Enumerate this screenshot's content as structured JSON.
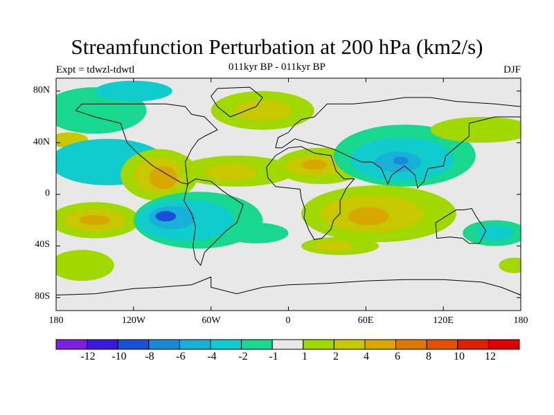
{
  "title": "Streamfunction Perturbation at 200 hPa (km2/s)",
  "subtitle": "011kyr BP - 011kyr BP",
  "left_label": "Expt = tdwzl-tdwtl",
  "right_label": "DJF",
  "lat_ticks": [
    "80N",
    "40N",
    "0",
    "40S",
    "80S"
  ],
  "lon_ticks": [
    "180",
    "120W",
    "60W",
    "0",
    "60E",
    "120E",
    "180"
  ],
  "colorbar": {
    "colors": [
      "#7f1fdf",
      "#3a1adf",
      "#1a50d8",
      "#1a88d8",
      "#18b0d8",
      "#10cccc",
      "#18d890",
      "#e8e8e8",
      "#a0d800",
      "#c8c800",
      "#d8a800",
      "#e07800",
      "#e05000",
      "#e02000",
      "#e00000"
    ],
    "labels": [
      "-12",
      "-10",
      "-8",
      "-6",
      "-4",
      "-2",
      "-1",
      "1",
      "2",
      "4",
      "6",
      "8",
      "10",
      "12"
    ]
  },
  "map": {
    "background_color": "#e8e8e8",
    "lon_range": [
      -180,
      180
    ],
    "lat_range": [
      -90,
      90
    ],
    "features": [
      {
        "name": "n-pacific-green-band",
        "lon": -150,
        "lat": 65,
        "rx": 40,
        "ry": 18,
        "color": "#18d890"
      },
      {
        "name": "arctic-cyan",
        "lon": -120,
        "lat": 80,
        "rx": 30,
        "ry": 8,
        "color": "#10cccc"
      },
      {
        "name": "n-atlantic-green",
        "lon": -20,
        "lat": 65,
        "rx": 40,
        "ry": 15,
        "color": "#a0d800"
      },
      {
        "name": "n-atlantic-yellow",
        "lon": -20,
        "lat": 65,
        "rx": 22,
        "ry": 8,
        "color": "#c8c800"
      },
      {
        "name": "n-pacific-yellow",
        "lon": -170,
        "lat": 42,
        "rx": 15,
        "ry": 6,
        "color": "#c8c800"
      },
      {
        "name": "e-pacific-cyan-band",
        "lon": -140,
        "lat": 25,
        "rx": 45,
        "ry": 18,
        "color": "#10cccc"
      },
      {
        "name": "mexico-high-green",
        "lon": -100,
        "lat": 15,
        "rx": 30,
        "ry": 20,
        "color": "#a0d800"
      },
      {
        "name": "mexico-high-yellow",
        "lon": -100,
        "lat": 15,
        "rx": 20,
        "ry": 14,
        "color": "#c8c800"
      },
      {
        "name": "mexico-high-orange",
        "lon": -97,
        "lat": 13,
        "rx": 11,
        "ry": 9,
        "color": "#d8a800"
      },
      {
        "name": "atlantic-trop-green",
        "lon": -40,
        "lat": 18,
        "rx": 45,
        "ry": 12,
        "color": "#a0d800"
      },
      {
        "name": "atlantic-trop-yellow",
        "lon": -45,
        "lat": 17,
        "rx": 20,
        "ry": 7,
        "color": "#c8c800"
      },
      {
        "name": "sahara-green",
        "lon": 25,
        "lat": 22,
        "rx": 35,
        "ry": 14,
        "color": "#a0d800"
      },
      {
        "name": "sahara-yellow",
        "lon": 20,
        "lat": 22,
        "rx": 22,
        "ry": 8,
        "color": "#c8c800"
      },
      {
        "name": "sahara-orange",
        "lon": 20,
        "lat": 23,
        "rx": 10,
        "ry": 4,
        "color": "#d8a800"
      },
      {
        "name": "asia-low-green",
        "lon": 90,
        "lat": 30,
        "rx": 55,
        "ry": 24,
        "color": "#18d890"
      },
      {
        "name": "asia-low-cyan",
        "lon": 88,
        "lat": 27,
        "rx": 40,
        "ry": 17,
        "color": "#10cccc"
      },
      {
        "name": "asia-low-blue",
        "lon": 85,
        "lat": 25,
        "rx": 18,
        "ry": 8,
        "color": "#18b0d8"
      },
      {
        "name": "asia-low-core",
        "lon": 87,
        "lat": 26,
        "rx": 6,
        "ry": 3,
        "color": "#1a88d8"
      },
      {
        "name": "e-asia-green-band",
        "lon": 150,
        "lat": 50,
        "rx": 40,
        "ry": 10,
        "color": "#a0d800"
      },
      {
        "name": "s-pacific-green",
        "lon": -150,
        "lat": -20,
        "rx": 35,
        "ry": 14,
        "color": "#a0d800"
      },
      {
        "name": "s-pacific-yellow",
        "lon": -150,
        "lat": -20,
        "rx": 24,
        "ry": 9,
        "color": "#c8c800"
      },
      {
        "name": "s-pacific-orange",
        "lon": -150,
        "lat": -20,
        "rx": 12,
        "ry": 4,
        "color": "#d8a800"
      },
      {
        "name": "s-america-low-green",
        "lon": -70,
        "lat": -20,
        "rx": 50,
        "ry": 22,
        "color": "#18d890"
      },
      {
        "name": "s-america-low-cyan",
        "lon": -80,
        "lat": -20,
        "rx": 38,
        "ry": 16,
        "color": "#10cccc"
      },
      {
        "name": "s-america-low-blue",
        "lon": -90,
        "lat": -18,
        "rx": 18,
        "ry": 9,
        "color": "#18b0d8"
      },
      {
        "name": "s-america-low-core",
        "lon": -95,
        "lat": -17,
        "rx": 8,
        "ry": 4,
        "color": "#1a50d8"
      },
      {
        "name": "s-atlantic-green",
        "lon": -25,
        "lat": -30,
        "rx": 25,
        "ry": 8,
        "color": "#18d890"
      },
      {
        "name": "s-indian-green",
        "lon": 70,
        "lat": -15,
        "rx": 60,
        "ry": 22,
        "color": "#a0d800"
      },
      {
        "name": "s-indian-yellow",
        "lon": 65,
        "lat": -15,
        "rx": 40,
        "ry": 14,
        "color": "#c8c800"
      },
      {
        "name": "s-indian-orange",
        "lon": 62,
        "lat": -17,
        "rx": 16,
        "ry": 7,
        "color": "#d8a800"
      },
      {
        "name": "australia-low-green",
        "lon": 160,
        "lat": -30,
        "rx": 25,
        "ry": 10,
        "color": "#18d890"
      },
      {
        "name": "australia-low-cyan",
        "lon": 160,
        "lat": -30,
        "rx": 14,
        "ry": 6,
        "color": "#10cccc"
      },
      {
        "name": "s-ocean-green-west",
        "lon": -160,
        "lat": -55,
        "rx": 25,
        "ry": 12,
        "color": "#a0d800"
      },
      {
        "name": "s-ocean-green-east",
        "lon": 40,
        "lat": -40,
        "rx": 30,
        "ry": 7,
        "color": "#a0d800"
      },
      {
        "name": "s-ocean-yellow-east",
        "lon": 35,
        "lat": -40,
        "rx": 15,
        "ry": 4,
        "color": "#c8c800"
      },
      {
        "name": "se-pacific-green",
        "lon": 175,
        "lat": -55,
        "rx": 12,
        "ry": 6,
        "color": "#a0d800"
      }
    ],
    "coastlines": [
      {
        "name": "north-america-coast",
        "points": [
          [
            -165,
            65
          ],
          [
            -150,
            60
          ],
          [
            -130,
            55
          ],
          [
            -125,
            40
          ],
          [
            -117,
            32
          ],
          [
            -105,
            22
          ],
          [
            -95,
            16
          ],
          [
            -83,
            9
          ],
          [
            -78,
            8
          ],
          [
            -80,
            25
          ],
          [
            -75,
            35
          ],
          [
            -70,
            42
          ],
          [
            -65,
            45
          ],
          [
            -55,
            50
          ],
          [
            -60,
            55
          ],
          [
            -65,
            60
          ],
          [
            -75,
            62
          ],
          [
            -80,
            68
          ],
          [
            -95,
            70
          ],
          [
            -110,
            70
          ],
          [
            -125,
            70
          ],
          [
            -140,
            70
          ],
          [
            -160,
            70
          ],
          [
            -165,
            65
          ]
        ]
      },
      {
        "name": "greenland-coast",
        "points": [
          [
            -55,
            82
          ],
          [
            -30,
            83
          ],
          [
            -20,
            75
          ],
          [
            -25,
            68
          ],
          [
            -45,
            60
          ],
          [
            -55,
            68
          ],
          [
            -60,
            76
          ],
          [
            -55,
            82
          ]
        ]
      },
      {
        "name": "south-america-coast",
        "points": [
          [
            -78,
            8
          ],
          [
            -72,
            12
          ],
          [
            -60,
            10
          ],
          [
            -50,
            2
          ],
          [
            -35,
            -8
          ],
          [
            -40,
            -22
          ],
          [
            -48,
            -28
          ],
          [
            -58,
            -38
          ],
          [
            -65,
            -45
          ],
          [
            -68,
            -55
          ],
          [
            -72,
            -50
          ],
          [
            -74,
            -40
          ],
          [
            -72,
            -25
          ],
          [
            -75,
            -15
          ],
          [
            -81,
            -5
          ],
          [
            -78,
            8
          ]
        ]
      },
      {
        "name": "eurasia-coast",
        "points": [
          [
            -10,
            36
          ],
          [
            -8,
            44
          ],
          [
            0,
            48
          ],
          [
            5,
            54
          ],
          [
            10,
            58
          ],
          [
            20,
            60
          ],
          [
            25,
            65
          ],
          [
            30,
            70
          ],
          [
            50,
            70
          ],
          [
            70,
            72
          ],
          [
            90,
            75
          ],
          [
            110,
            75
          ],
          [
            130,
            72
          ],
          [
            160,
            70
          ],
          [
            180,
            68
          ],
          [
            180,
            60
          ],
          [
            160,
            60
          ],
          [
            140,
            55
          ],
          [
            140,
            45
          ],
          [
            128,
            35
          ],
          [
            122,
            30
          ],
          [
            120,
            22
          ],
          [
            108,
            20
          ],
          [
            105,
            10
          ],
          [
            100,
            5
          ],
          [
            98,
            15
          ],
          [
            90,
            22
          ],
          [
            80,
            15
          ],
          [
            77,
            8
          ],
          [
            72,
            20
          ],
          [
            65,
            25
          ],
          [
            57,
            25
          ],
          [
            50,
            28
          ],
          [
            35,
            35
          ],
          [
            25,
            38
          ],
          [
            15,
            40
          ],
          [
            5,
            43
          ],
          [
            -5,
            36
          ],
          [
            -10,
            36
          ]
        ]
      },
      {
        "name": "africa-coast",
        "points": [
          [
            -17,
            21
          ],
          [
            -16,
            13
          ],
          [
            -10,
            6
          ],
          [
            0,
            5
          ],
          [
            9,
            4
          ],
          [
            10,
            -3
          ],
          [
            13,
            -12
          ],
          [
            12,
            -18
          ],
          [
            16,
            -28
          ],
          [
            20,
            -35
          ],
          [
            26,
            -34
          ],
          [
            33,
            -27
          ],
          [
            35,
            -20
          ],
          [
            40,
            -15
          ],
          [
            40,
            -5
          ],
          [
            45,
            5
          ],
          [
            51,
            12
          ],
          [
            43,
            12
          ],
          [
            37,
            18
          ],
          [
            33,
            30
          ],
          [
            20,
            32
          ],
          [
            10,
            37
          ],
          [
            0,
            36
          ],
          [
            -10,
            30
          ],
          [
            -17,
            21
          ]
        ]
      },
      {
        "name": "australia-coast",
        "points": [
          [
            114,
            -22
          ],
          [
            115,
            -34
          ],
          [
            125,
            -33
          ],
          [
            135,
            -34
          ],
          [
            140,
            -38
          ],
          [
            148,
            -38
          ],
          [
            153,
            -28
          ],
          [
            146,
            -18
          ],
          [
            142,
            -11
          ],
          [
            136,
            -12
          ],
          [
            130,
            -12
          ],
          [
            122,
            -17
          ],
          [
            114,
            -22
          ]
        ]
      },
      {
        "name": "antarctica-coast",
        "points": [
          [
            -180,
            -78
          ],
          [
            -150,
            -77
          ],
          [
            -120,
            -73
          ],
          [
            -100,
            -72
          ],
          [
            -75,
            -70
          ],
          [
            -60,
            -64
          ],
          [
            -60,
            -72
          ],
          [
            -40,
            -77
          ],
          [
            -20,
            -72
          ],
          [
            0,
            -70
          ],
          [
            30,
            -69
          ],
          [
            60,
            -67
          ],
          [
            90,
            -66
          ],
          [
            120,
            -66
          ],
          [
            150,
            -68
          ],
          [
            165,
            -72
          ],
          [
            180,
            -78
          ]
        ]
      }
    ]
  }
}
